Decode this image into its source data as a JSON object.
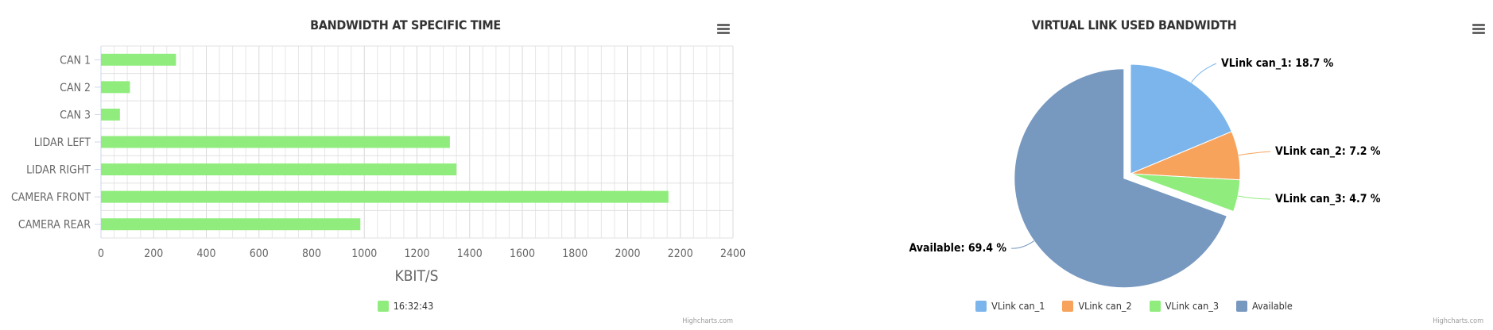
{
  "chart_data": [
    {
      "type": "bar",
      "orientation": "horizontal",
      "title": "BANDWIDTH AT SPECIFIC TIME",
      "categories": [
        "CAN 1",
        "CAN 2",
        "CAN 3",
        "LIDAR LEFT",
        "LIDAR RIGHT",
        "CAMERA FRONT",
        "CAMERA REAR"
      ],
      "series": [
        {
          "name": "16:32:43",
          "color": "#90ed7d",
          "values": [
            285,
            110,
            72,
            1325,
            1350,
            2155,
            985
          ]
        }
      ],
      "xlabel": "KBIT/S",
      "xlim": [
        0,
        2400
      ],
      "xticks": [
        0,
        200,
        400,
        600,
        800,
        1000,
        1200,
        1400,
        1600,
        1800,
        2000,
        2200,
        2400
      ],
      "minor_step": 50,
      "grid": true,
      "legend_position": "bottom-center",
      "credits": "Highcharts.com"
    },
    {
      "type": "pie",
      "title": "VIRTUAL LINK USED BANDWIDTH",
      "slices": [
        {
          "name": "VLink can_1",
          "value": 18.7,
          "label": "VLink can_1: 18.7 %",
          "color": "#7cb5ec",
          "sliced": false
        },
        {
          "name": "VLink can_2",
          "value": 7.2,
          "label": "VLink can_2: 7.2 %",
          "color": "#f7a35c",
          "sliced": false
        },
        {
          "name": "VLink can_3",
          "value": 4.7,
          "label": "VLink can_3: 4.7 %",
          "color": "#90ed7d",
          "sliced": false
        },
        {
          "name": "Available",
          "value": 69.4,
          "label": "Available: 69.4 %",
          "color": "#7798bf",
          "sliced": true
        }
      ],
      "legend_position": "bottom-center",
      "credits": "Highcharts.com"
    }
  ]
}
